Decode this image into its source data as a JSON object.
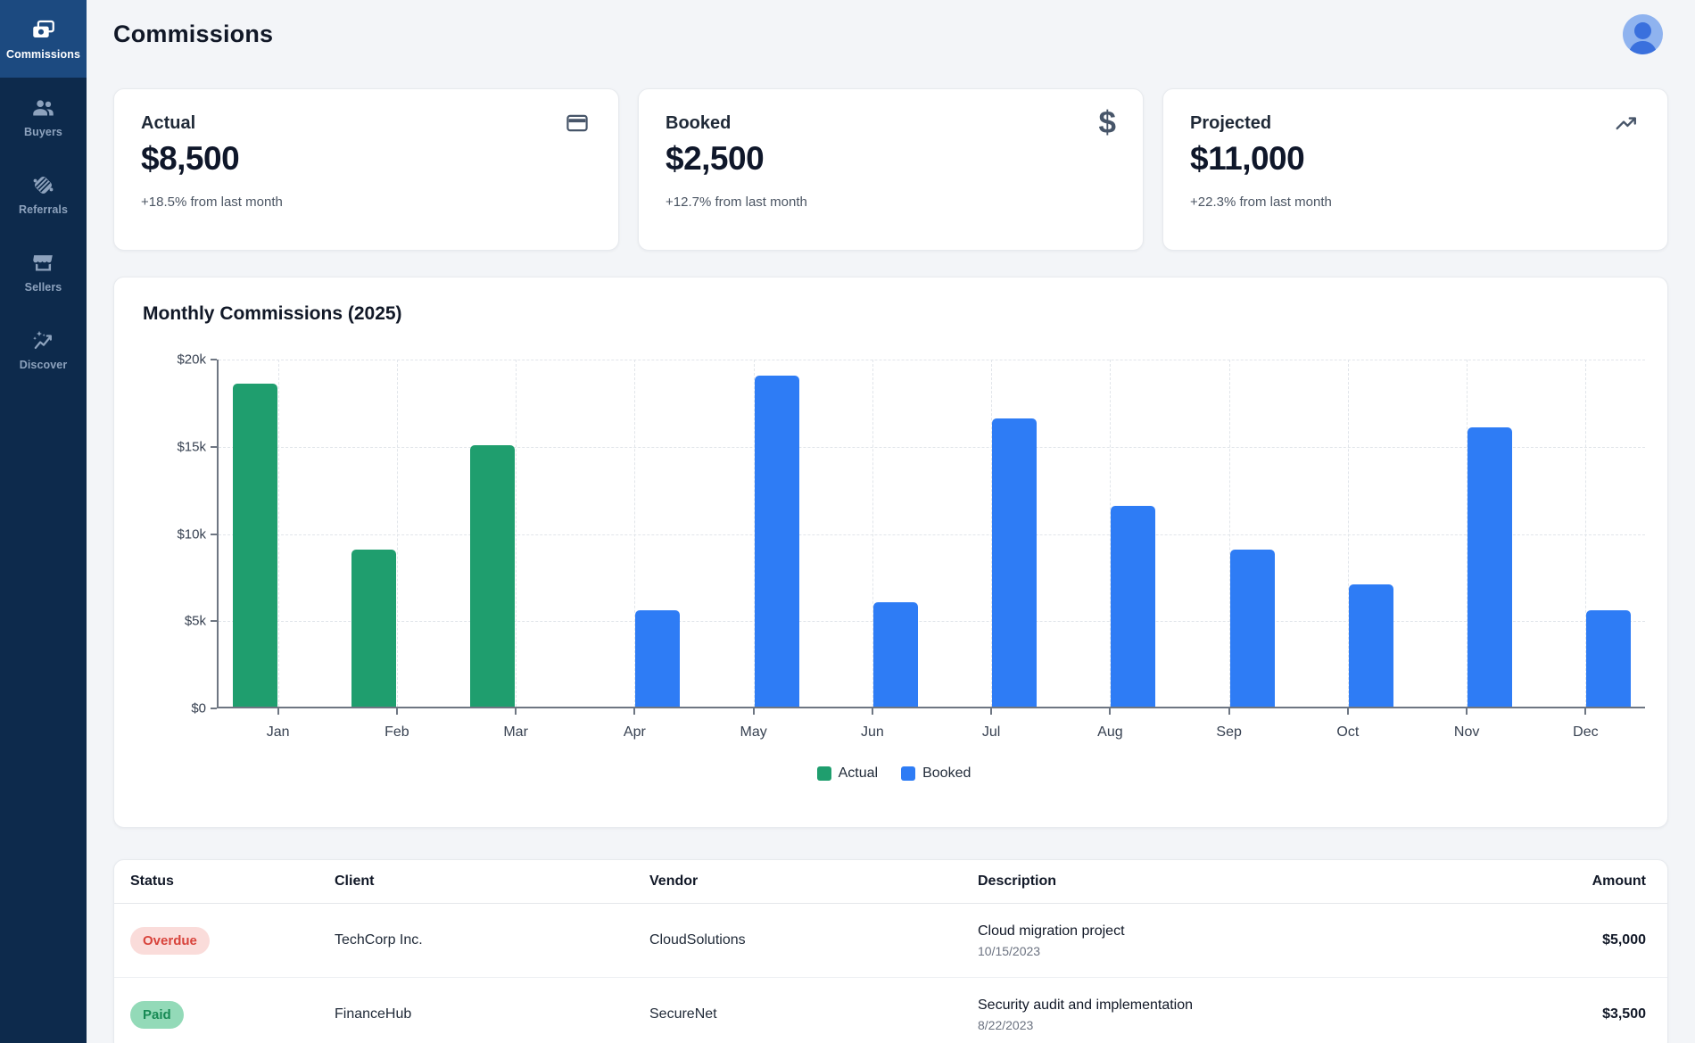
{
  "sidebar": {
    "items": [
      {
        "label": "Commissions",
        "icon": "payments-icon",
        "active": true
      },
      {
        "label": "Buyers",
        "icon": "people-icon",
        "active": false
      },
      {
        "label": "Referrals",
        "icon": "handshake-icon",
        "active": false
      },
      {
        "label": "Sellers",
        "icon": "storefront-icon",
        "active": false
      },
      {
        "label": "Discover",
        "icon": "insights-icon",
        "active": false
      }
    ],
    "bg_color": "#0d2a4c",
    "active_bg_color": "#1c4a80"
  },
  "header": {
    "title": "Commissions"
  },
  "stat_cards": [
    {
      "label": "Actual",
      "value": "$8,500",
      "change": "+18.5% from last month",
      "icon": "credit-card-icon"
    },
    {
      "label": "Booked",
      "value": "$2,500",
      "change": "+12.7% from last month",
      "icon": "dollar-icon"
    },
    {
      "label": "Projected",
      "value": "$11,000",
      "change": "+22.3% from last month",
      "icon": "trending-up-icon"
    }
  ],
  "chart_card": {
    "title": "Monthly Commissions (2025)"
  },
  "chart_data": {
    "type": "bar",
    "title": "Monthly Commissions (2025)",
    "categories": [
      "Jan",
      "Feb",
      "Mar",
      "Apr",
      "May",
      "Jun",
      "Jul",
      "Aug",
      "Sep",
      "Oct",
      "Nov",
      "Dec"
    ],
    "series": [
      {
        "name": "Actual",
        "color": "#1f9e6e",
        "values": [
          18500,
          9000,
          15000,
          0,
          0,
          0,
          0,
          0,
          0,
          0,
          0,
          0
        ]
      },
      {
        "name": "Booked",
        "color": "#2e7cf5",
        "values": [
          0,
          0,
          0,
          5500,
          19000,
          6000,
          16500,
          11500,
          9000,
          7000,
          16000,
          5500
        ]
      }
    ],
    "xlabel": "",
    "ylabel": "",
    "ylim": [
      0,
      20000
    ],
    "yticks": [
      {
        "value": 0,
        "label": "$0"
      },
      {
        "value": 5000,
        "label": "$5k"
      },
      {
        "value": 10000,
        "label": "$10k"
      },
      {
        "value": 15000,
        "label": "$15k"
      },
      {
        "value": 20000,
        "label": "$20k"
      }
    ],
    "grid": true,
    "legend_position": "bottom"
  },
  "table": {
    "columns": [
      "Status",
      "Client",
      "Vendor",
      "Description",
      "Amount"
    ],
    "status_styles": {
      "overdue": {
        "bg": "#fadcda",
        "text": "#d8433b"
      },
      "paid": {
        "bg": "#93dab8",
        "text": "#178a54"
      }
    },
    "rows": [
      {
        "status": "Overdue",
        "status_class": "overdue",
        "client": "TechCorp Inc.",
        "vendor": "CloudSolutions",
        "description": "Cloud migration project",
        "date": "10/15/2023",
        "amount": "$5,000"
      },
      {
        "status": "Paid",
        "status_class": "paid",
        "client": "FinanceHub",
        "vendor": "SecureNet",
        "description": "Security audit and implementation",
        "date": "8/22/2023",
        "amount": "$3,500"
      }
    ]
  }
}
